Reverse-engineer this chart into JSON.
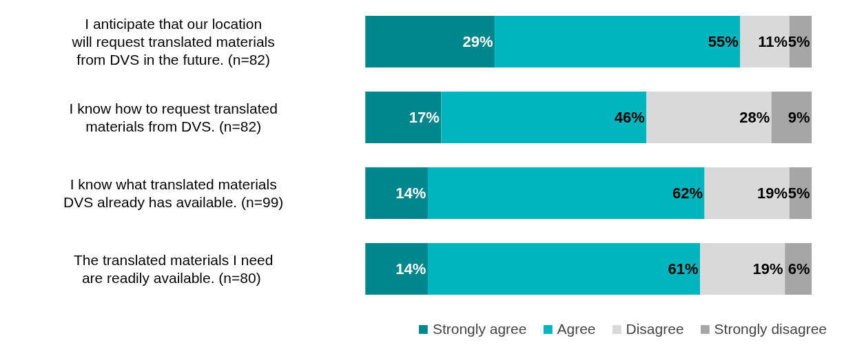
{
  "chart_data": {
    "type": "bar",
    "orientation": "horizontal",
    "stacked": true,
    "legend": "bottom",
    "categories": [
      "I anticipate that our location will request translated materials from DVS in the future. (n=82)",
      "I know how to request translated materials from DVS. (n=82)",
      "I know what translated materials DVS already has available. (n=99)",
      "The translated materials I need are readily available.  (n=80)"
    ],
    "series": [
      {
        "name": "Strongly agree",
        "color": "#00878e",
        "values": [
          29,
          17,
          14,
          14
        ],
        "value_labels": [
          "29%",
          "17%",
          "14%",
          "14%"
        ]
      },
      {
        "name": "Agree",
        "color": "#00b5bd",
        "values": [
          55,
          46,
          62,
          61
        ],
        "value_labels": [
          "55%",
          "46%",
          "62%",
          "61%"
        ]
      },
      {
        "name": "Disagree",
        "color": "#d9d9d9",
        "values": [
          11,
          28,
          19,
          19
        ],
        "value_labels": [
          "11%",
          "28%",
          "19%",
          "19%"
        ]
      },
      {
        "name": "Strongly disagree",
        "color": "#a6a6a6",
        "values": [
          5,
          9,
          5,
          6
        ],
        "value_labels": [
          "5%",
          "9%",
          "5%",
          "6%"
        ]
      }
    ]
  }
}
